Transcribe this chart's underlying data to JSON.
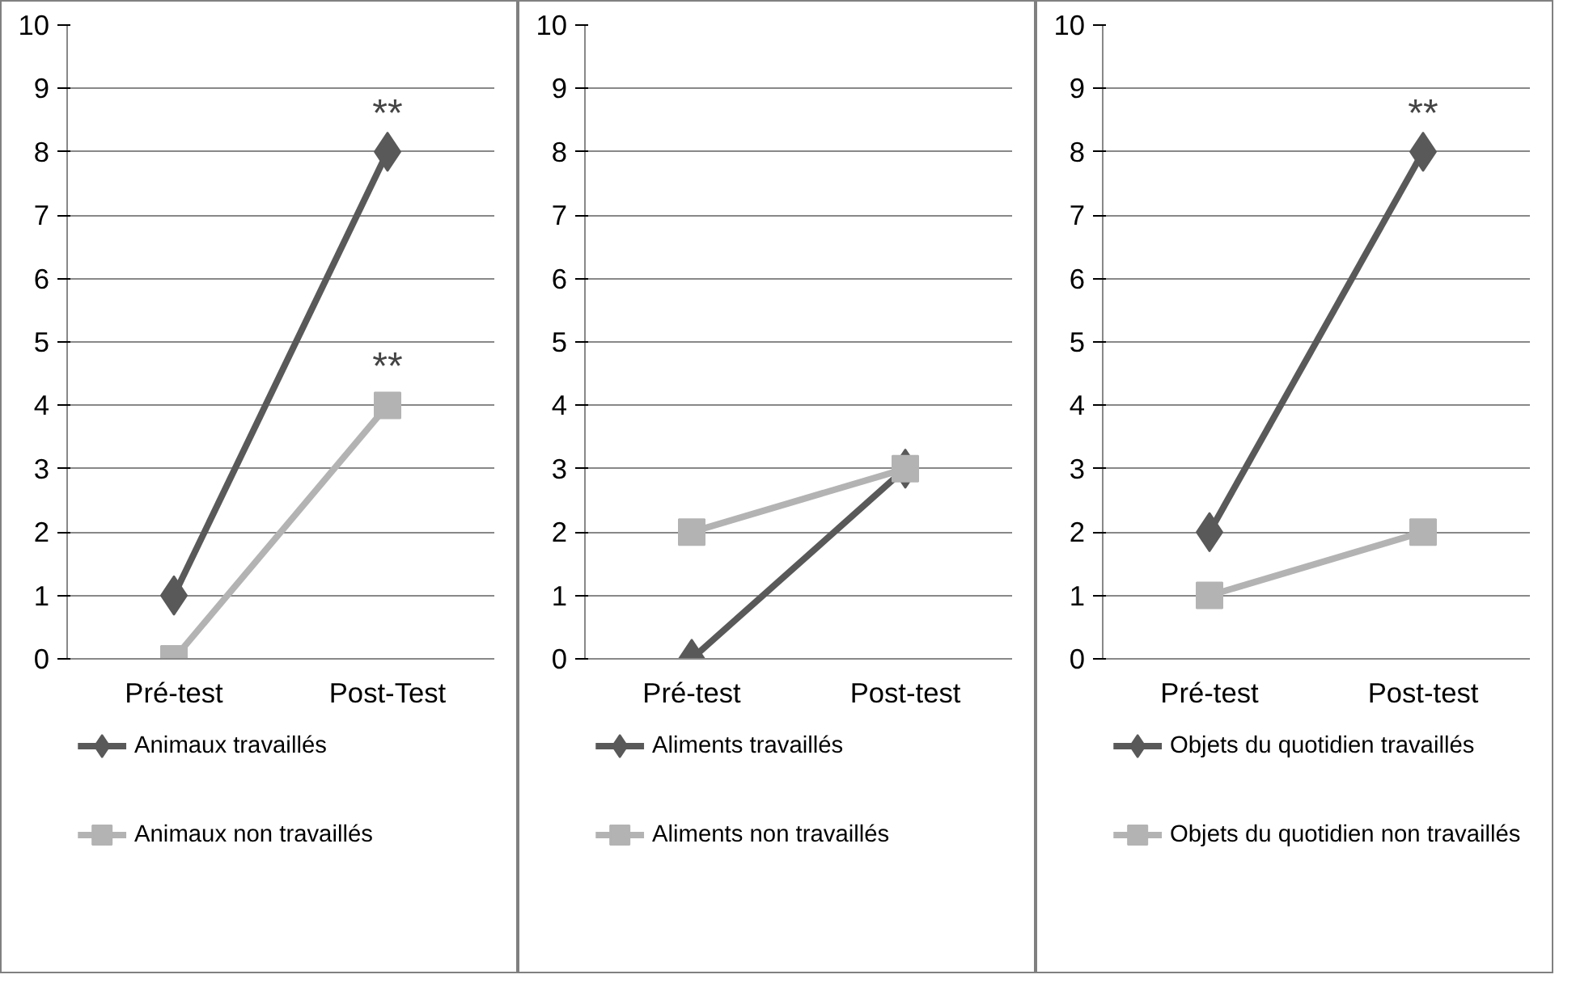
{
  "chart_data": [
    {
      "type": "line",
      "categories": [
        "Pré-test",
        "Post-Test"
      ],
      "ylim": [
        0,
        10
      ],
      "yticks": [
        0,
        1,
        2,
        3,
        4,
        5,
        6,
        7,
        8,
        9,
        10
      ],
      "grid": "y",
      "legend": "bottom",
      "series": [
        {
          "name": "Animaux travaillés",
          "color": "#595959",
          "marker": "diamond",
          "values": [
            1,
            8
          ]
        },
        {
          "name": "Animaux non travaillés",
          "color": "#b3b3b3",
          "marker": "square",
          "values": [
            0,
            4
          ]
        }
      ],
      "annotations": [
        {
          "text": "**",
          "x": "Post-Test",
          "y": 8
        },
        {
          "text": "**",
          "x": "Post-Test",
          "y": 4
        }
      ]
    },
    {
      "type": "line",
      "categories": [
        "Pré-test",
        "Post-test"
      ],
      "ylim": [
        0,
        10
      ],
      "yticks": [
        0,
        1,
        2,
        3,
        4,
        5,
        6,
        7,
        8,
        9,
        10
      ],
      "grid": "y",
      "legend": "bottom",
      "series": [
        {
          "name": "Aliments travaillés",
          "color": "#595959",
          "marker": "diamond",
          "values": [
            0,
            3
          ]
        },
        {
          "name": "Aliments non travaillés",
          "color": "#b3b3b3",
          "marker": "square",
          "values": [
            2,
            3
          ]
        }
      ]
    },
    {
      "type": "line",
      "categories": [
        "Pré-test",
        "Post-test"
      ],
      "ylim": [
        0,
        10
      ],
      "yticks": [
        0,
        1,
        2,
        3,
        4,
        5,
        6,
        7,
        8,
        9,
        10
      ],
      "grid": "y",
      "legend": "bottom",
      "series": [
        {
          "name": "Objets du quotidien travaillés",
          "color": "#595959",
          "marker": "diamond",
          "values": [
            2,
            8
          ]
        },
        {
          "name": "Objets du quotidien non travaillés",
          "color": "#b3b3b3",
          "marker": "square",
          "values": [
            1,
            2
          ]
        }
      ],
      "annotations": [
        {
          "text": "**",
          "x": "Post-test",
          "y": 8
        }
      ]
    }
  ]
}
